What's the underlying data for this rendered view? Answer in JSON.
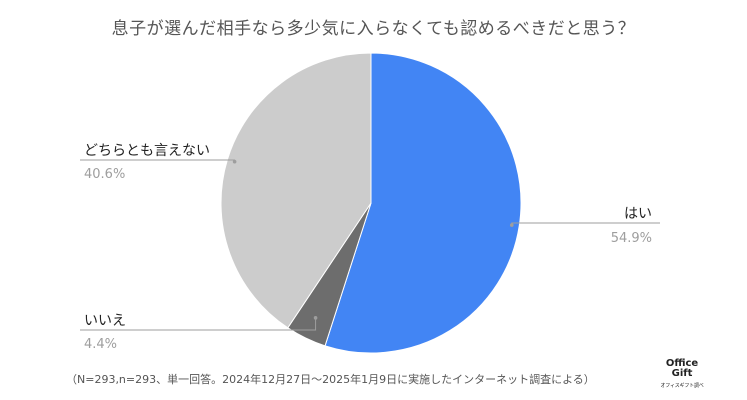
{
  "chart_data": {
    "type": "pie",
    "title": "息子が選んだ相手なら多少気に入らなくても認めるべきだと思う？",
    "slices": [
      {
        "label": "はい",
        "value": 54.9,
        "display": "54.9%",
        "color": "#4285f4"
      },
      {
        "label": "いいえ",
        "value": 4.4,
        "display": "4.4%",
        "color": "#6d6d6d"
      },
      {
        "label": "どちらとも言えない",
        "value": 40.6,
        "display": "40.6%",
        "color": "#cccccc"
      }
    ],
    "start": "top",
    "direction": "clockwise",
    "label_color": "#222222",
    "value_color": "#9e9e9e",
    "leader_color": "#9e9e9e"
  },
  "footnote": "（N=293,n=293、単一回答。2024年12月27日～2025年1月9日に実施したインターネット調査による）",
  "logo": {
    "line1": "Office",
    "line2": "Gift",
    "line3": "オフィスギフト調べ"
  }
}
